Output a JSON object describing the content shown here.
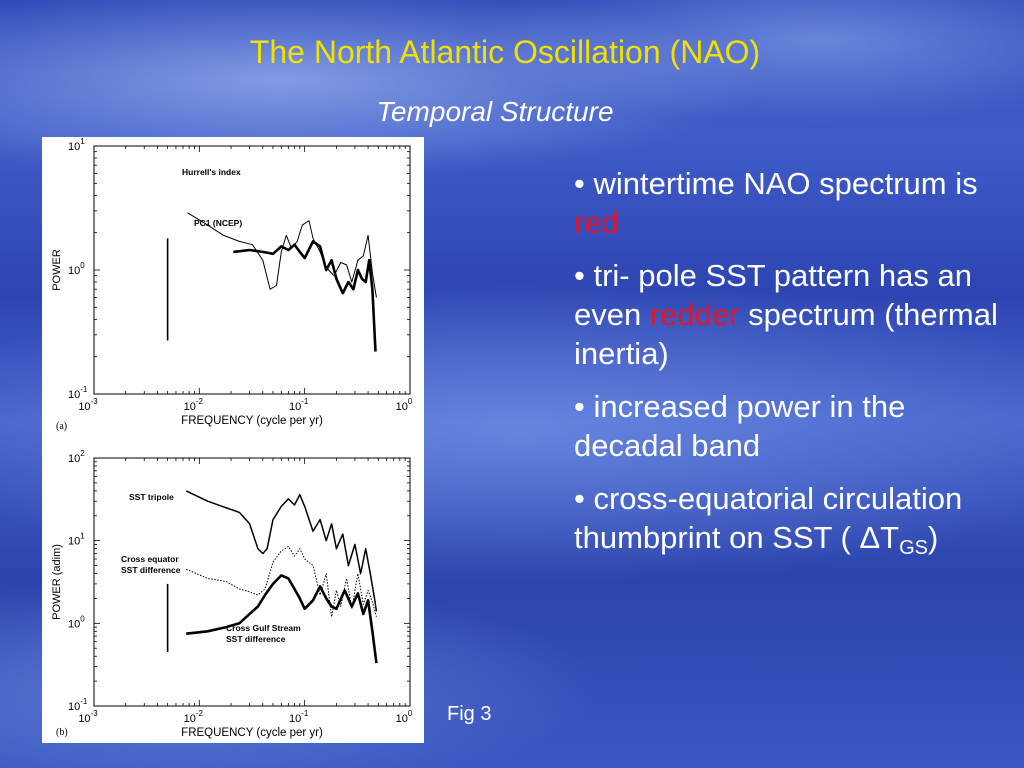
{
  "title": "The North Atlantic Oscillation (NAO)",
  "subtitle": "Temporal Structure",
  "figure_caption": "Fig 3",
  "bullets": [
    {
      "parts": [
        {
          "text": "• wintertime NAO spectrum is "
        },
        {
          "text": "red",
          "red": true
        }
      ]
    },
    {
      "parts": [
        {
          "text": "• tri- pole SST pattern has an even "
        },
        {
          "text": "redder",
          "red": true
        },
        {
          "text": " spectrum (thermal inertia)"
        }
      ]
    },
    {
      "parts": [
        {
          "text": "• increased power in the decadal band"
        }
      ]
    },
    {
      "parts": [
        {
          "text": "• cross-equatorial circulation thumbprint on SST ( ΔT"
        },
        {
          "text": "GS",
          "sub": true
        },
        {
          "text": ")"
        }
      ]
    }
  ],
  "colors": {
    "title": "#f2e100",
    "highlight": "#e0162b",
    "text": "#ffffff"
  },
  "chart_data": [
    {
      "type": "line",
      "panel_label": "(a)",
      "xlabel": "FREQUENCY (cycle per yr)",
      "ylabel": "POWER",
      "xscale": "log",
      "yscale": "log",
      "xlim": [
        0.001,
        1
      ],
      "ylim": [
        0.1,
        10
      ],
      "xticks": [
        {
          "base": "10",
          "exp": "-3"
        },
        {
          "base": "10",
          "exp": "-2"
        },
        {
          "base": "10",
          "exp": "-1"
        },
        {
          "base": "10",
          "exp": "0"
        }
      ],
      "yticks": [
        {
          "base": "10",
          "exp": "-1"
        },
        {
          "base": "10",
          "exp": "0"
        },
        {
          "base": "10",
          "exp": "1"
        }
      ],
      "series": [
        {
          "name": "Hurrell's index",
          "style": "thin",
          "x": [
            0.0077,
            0.012,
            0.017,
            0.024,
            0.032,
            0.04,
            0.047,
            0.054,
            0.06,
            0.067,
            0.075,
            0.085,
            0.095,
            0.11,
            0.12,
            0.14,
            0.16,
            0.19,
            0.22,
            0.25,
            0.28,
            0.32,
            0.36,
            0.4,
            0.44,
            0.48
          ],
          "y": [
            2.9,
            2.3,
            1.9,
            1.7,
            1.6,
            1.2,
            0.7,
            0.75,
            1.4,
            1.9,
            1.5,
            1.7,
            2.3,
            2.5,
            1.8,
            1.4,
            1.05,
            0.9,
            1.15,
            1.1,
            0.8,
            1.2,
            1.3,
            1.9,
            0.95,
            0.6
          ]
        },
        {
          "name": "PC1 (NCEP)",
          "style": "thick",
          "x": [
            0.021,
            0.03,
            0.04,
            0.05,
            0.06,
            0.07,
            0.08,
            0.09,
            0.1,
            0.12,
            0.14,
            0.16,
            0.18,
            0.2,
            0.23,
            0.26,
            0.29,
            0.32,
            0.35,
            0.38,
            0.41,
            0.44,
            0.47
          ],
          "y": [
            1.4,
            1.45,
            1.4,
            1.35,
            1.55,
            1.45,
            1.6,
            1.4,
            1.25,
            1.7,
            1.55,
            1.0,
            1.2,
            0.85,
            0.65,
            0.8,
            0.7,
            1.0,
            0.85,
            0.8,
            1.2,
            0.7,
            0.22
          ]
        }
      ],
      "annotations": [
        {
          "kind": "error_bar",
          "x": 0.005,
          "y_low": 0.27,
          "y_high": 1.8
        }
      ]
    },
    {
      "type": "line",
      "panel_label": "(b)",
      "xlabel": "FREQUENCY (cycle per yr)",
      "ylabel": "POWER (adim)",
      "xscale": "log",
      "yscale": "log",
      "xlim": [
        0.001,
        1
      ],
      "ylim": [
        0.1,
        100
      ],
      "xticks": [
        {
          "base": "10",
          "exp": "-3"
        },
        {
          "base": "10",
          "exp": "-2"
        },
        {
          "base": "10",
          "exp": "-1"
        },
        {
          "base": "10",
          "exp": "0"
        }
      ],
      "yticks": [
        {
          "base": "10",
          "exp": "-1"
        },
        {
          "base": "10",
          "exp": "0"
        },
        {
          "base": "10",
          "exp": "1"
        },
        {
          "base": "10",
          "exp": "2"
        }
      ],
      "series": [
        {
          "name": "SST tripole",
          "style": "medium",
          "x": [
            0.0075,
            0.012,
            0.018,
            0.024,
            0.03,
            0.036,
            0.04,
            0.044,
            0.05,
            0.06,
            0.07,
            0.08,
            0.09,
            0.1,
            0.12,
            0.14,
            0.16,
            0.18,
            0.2,
            0.23,
            0.26,
            0.3,
            0.34,
            0.38,
            0.42,
            0.46,
            0.48
          ],
          "y": [
            40,
            30,
            25,
            22,
            16,
            8,
            7,
            8,
            18,
            26,
            32,
            27,
            36,
            26,
            13,
            18,
            10,
            16,
            8,
            12,
            5,
            9,
            4,
            8,
            4,
            2,
            1.4
          ]
        },
        {
          "name": "Cross equator SST difference",
          "style": "dotted",
          "x": [
            0.0075,
            0.012,
            0.018,
            0.024,
            0.03,
            0.036,
            0.042,
            0.05,
            0.06,
            0.07,
            0.08,
            0.09,
            0.1,
            0.12,
            0.14,
            0.16,
            0.18,
            0.2,
            0.22,
            0.25,
            0.28,
            0.32,
            0.36,
            0.4,
            0.44,
            0.48
          ],
          "y": [
            4.5,
            3.5,
            3.2,
            2.6,
            2.4,
            2.2,
            2.6,
            5.5,
            7.5,
            8.5,
            6.5,
            8,
            6,
            5,
            2.2,
            4,
            1.2,
            2.5,
            1.6,
            3.5,
            1.5,
            4,
            1.7,
            2.5,
            1.8,
            1.2
          ]
        },
        {
          "name": "Cross Gulf Stream SST difference",
          "style": "thick",
          "x": [
            0.0075,
            0.012,
            0.018,
            0.024,
            0.03,
            0.036,
            0.042,
            0.05,
            0.06,
            0.07,
            0.08,
            0.09,
            0.1,
            0.12,
            0.14,
            0.16,
            0.18,
            0.2,
            0.24,
            0.28,
            0.32,
            0.36,
            0.4,
            0.44,
            0.48
          ],
          "y": [
            0.75,
            0.8,
            0.9,
            1.0,
            1.3,
            1.6,
            2.2,
            3.0,
            3.8,
            3.5,
            2.6,
            2.0,
            1.5,
            1.9,
            2.8,
            2.0,
            1.6,
            1.5,
            2.5,
            1.6,
            2.3,
            1.3,
            1.9,
            0.8,
            0.33
          ]
        }
      ],
      "annotations": [
        {
          "kind": "error_bar",
          "x": 0.005,
          "y_low": 0.45,
          "y_high": 3.0
        }
      ]
    }
  ]
}
